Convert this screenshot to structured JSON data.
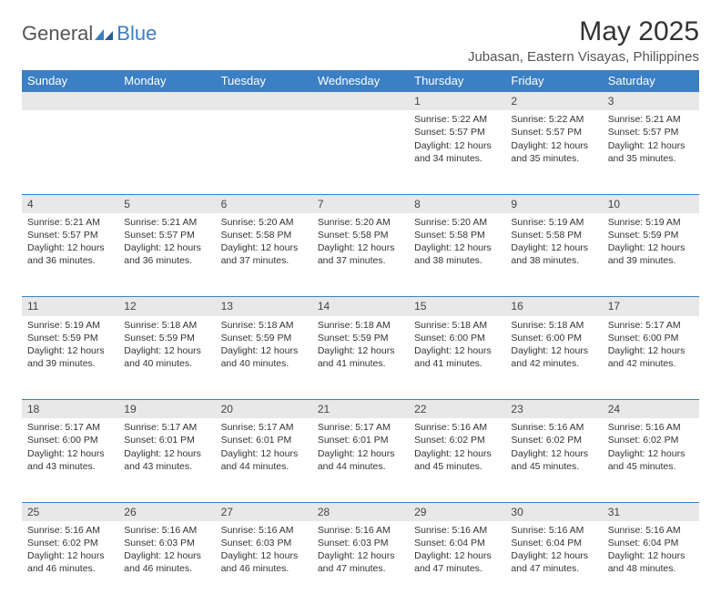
{
  "logo": {
    "general": "General",
    "blue": "Blue"
  },
  "title": "May 2025",
  "location": "Jubasan, Eastern Visayas, Philippines",
  "colors": {
    "header_bg": "#3b7fc4",
    "header_text": "#ffffff",
    "daynum_bg": "#e8e8e8",
    "border": "#3b7fc4",
    "text": "#333333",
    "background": "#ffffff"
  },
  "day_headers": [
    "Sunday",
    "Monday",
    "Tuesday",
    "Wednesday",
    "Thursday",
    "Friday",
    "Saturday"
  ],
  "weeks": [
    [
      null,
      null,
      null,
      null,
      {
        "n": "1",
        "sr": "Sunrise: 5:22 AM",
        "ss": "Sunset: 5:57 PM",
        "dl": "Daylight: 12 hours and 34 minutes."
      },
      {
        "n": "2",
        "sr": "Sunrise: 5:22 AM",
        "ss": "Sunset: 5:57 PM",
        "dl": "Daylight: 12 hours and 35 minutes."
      },
      {
        "n": "3",
        "sr": "Sunrise: 5:21 AM",
        "ss": "Sunset: 5:57 PM",
        "dl": "Daylight: 12 hours and 35 minutes."
      }
    ],
    [
      {
        "n": "4",
        "sr": "Sunrise: 5:21 AM",
        "ss": "Sunset: 5:57 PM",
        "dl": "Daylight: 12 hours and 36 minutes."
      },
      {
        "n": "5",
        "sr": "Sunrise: 5:21 AM",
        "ss": "Sunset: 5:57 PM",
        "dl": "Daylight: 12 hours and 36 minutes."
      },
      {
        "n": "6",
        "sr": "Sunrise: 5:20 AM",
        "ss": "Sunset: 5:58 PM",
        "dl": "Daylight: 12 hours and 37 minutes."
      },
      {
        "n": "7",
        "sr": "Sunrise: 5:20 AM",
        "ss": "Sunset: 5:58 PM",
        "dl": "Daylight: 12 hours and 37 minutes."
      },
      {
        "n": "8",
        "sr": "Sunrise: 5:20 AM",
        "ss": "Sunset: 5:58 PM",
        "dl": "Daylight: 12 hours and 38 minutes."
      },
      {
        "n": "9",
        "sr": "Sunrise: 5:19 AM",
        "ss": "Sunset: 5:58 PM",
        "dl": "Daylight: 12 hours and 38 minutes."
      },
      {
        "n": "10",
        "sr": "Sunrise: 5:19 AM",
        "ss": "Sunset: 5:59 PM",
        "dl": "Daylight: 12 hours and 39 minutes."
      }
    ],
    [
      {
        "n": "11",
        "sr": "Sunrise: 5:19 AM",
        "ss": "Sunset: 5:59 PM",
        "dl": "Daylight: 12 hours and 39 minutes."
      },
      {
        "n": "12",
        "sr": "Sunrise: 5:18 AM",
        "ss": "Sunset: 5:59 PM",
        "dl": "Daylight: 12 hours and 40 minutes."
      },
      {
        "n": "13",
        "sr": "Sunrise: 5:18 AM",
        "ss": "Sunset: 5:59 PM",
        "dl": "Daylight: 12 hours and 40 minutes."
      },
      {
        "n": "14",
        "sr": "Sunrise: 5:18 AM",
        "ss": "Sunset: 5:59 PM",
        "dl": "Daylight: 12 hours and 41 minutes."
      },
      {
        "n": "15",
        "sr": "Sunrise: 5:18 AM",
        "ss": "Sunset: 6:00 PM",
        "dl": "Daylight: 12 hours and 41 minutes."
      },
      {
        "n": "16",
        "sr": "Sunrise: 5:18 AM",
        "ss": "Sunset: 6:00 PM",
        "dl": "Daylight: 12 hours and 42 minutes."
      },
      {
        "n": "17",
        "sr": "Sunrise: 5:17 AM",
        "ss": "Sunset: 6:00 PM",
        "dl": "Daylight: 12 hours and 42 minutes."
      }
    ],
    [
      {
        "n": "18",
        "sr": "Sunrise: 5:17 AM",
        "ss": "Sunset: 6:00 PM",
        "dl": "Daylight: 12 hours and 43 minutes."
      },
      {
        "n": "19",
        "sr": "Sunrise: 5:17 AM",
        "ss": "Sunset: 6:01 PM",
        "dl": "Daylight: 12 hours and 43 minutes."
      },
      {
        "n": "20",
        "sr": "Sunrise: 5:17 AM",
        "ss": "Sunset: 6:01 PM",
        "dl": "Daylight: 12 hours and 44 minutes."
      },
      {
        "n": "21",
        "sr": "Sunrise: 5:17 AM",
        "ss": "Sunset: 6:01 PM",
        "dl": "Daylight: 12 hours and 44 minutes."
      },
      {
        "n": "22",
        "sr": "Sunrise: 5:16 AM",
        "ss": "Sunset: 6:02 PM",
        "dl": "Daylight: 12 hours and 45 minutes."
      },
      {
        "n": "23",
        "sr": "Sunrise: 5:16 AM",
        "ss": "Sunset: 6:02 PM",
        "dl": "Daylight: 12 hours and 45 minutes."
      },
      {
        "n": "24",
        "sr": "Sunrise: 5:16 AM",
        "ss": "Sunset: 6:02 PM",
        "dl": "Daylight: 12 hours and 45 minutes."
      }
    ],
    [
      {
        "n": "25",
        "sr": "Sunrise: 5:16 AM",
        "ss": "Sunset: 6:02 PM",
        "dl": "Daylight: 12 hours and 46 minutes."
      },
      {
        "n": "26",
        "sr": "Sunrise: 5:16 AM",
        "ss": "Sunset: 6:03 PM",
        "dl": "Daylight: 12 hours and 46 minutes."
      },
      {
        "n": "27",
        "sr": "Sunrise: 5:16 AM",
        "ss": "Sunset: 6:03 PM",
        "dl": "Daylight: 12 hours and 46 minutes."
      },
      {
        "n": "28",
        "sr": "Sunrise: 5:16 AM",
        "ss": "Sunset: 6:03 PM",
        "dl": "Daylight: 12 hours and 47 minutes."
      },
      {
        "n": "29",
        "sr": "Sunrise: 5:16 AM",
        "ss": "Sunset: 6:04 PM",
        "dl": "Daylight: 12 hours and 47 minutes."
      },
      {
        "n": "30",
        "sr": "Sunrise: 5:16 AM",
        "ss": "Sunset: 6:04 PM",
        "dl": "Daylight: 12 hours and 47 minutes."
      },
      {
        "n": "31",
        "sr": "Sunrise: 5:16 AM",
        "ss": "Sunset: 6:04 PM",
        "dl": "Daylight: 12 hours and 48 minutes."
      }
    ]
  ]
}
